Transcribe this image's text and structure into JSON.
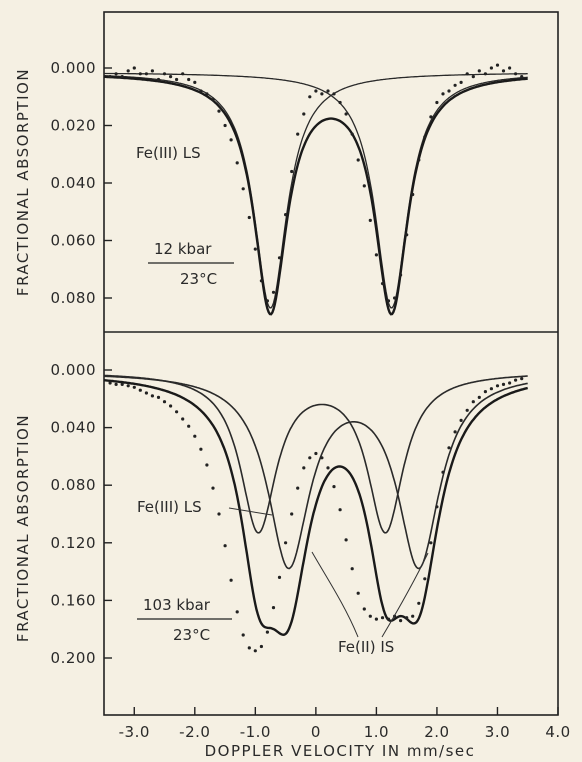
{
  "chart_data": [
    {
      "type": "scatter",
      "panel": "top",
      "ylabel": "FRACTIONAL ABSORPTION",
      "xlim": [
        -3.5,
        4.0
      ],
      "ylim": [
        0.0,
        0.086
      ],
      "y_inverted": true,
      "yticks": [
        "0.000",
        "0.020",
        "0.040",
        "0.060",
        "0.080"
      ],
      "annotations": {
        "species": "Fe(III) LS",
        "pressure": "12 kbar",
        "temperature": "23°C"
      },
      "series": [
        {
          "name": "Fe(III) LS",
          "kind": "doublet-fit",
          "baseline": 0.0015,
          "peaks": [
            {
              "center": -0.75,
              "depth": 0.082,
              "hwhm": 0.33
            },
            {
              "center": 1.25,
              "depth": 0.082,
              "hwhm": 0.33
            }
          ]
        },
        {
          "kind": "data-points",
          "x": [
            -3.4,
            -3.3,
            -3.2,
            -3.1,
            -3.0,
            -2.9,
            -2.8,
            -2.7,
            -2.6,
            -2.5,
            -2.4,
            -2.3,
            -2.2,
            -2.1,
            -2.0,
            -1.9,
            -1.8,
            -1.7,
            -1.6,
            -1.5,
            -1.4,
            -1.3,
            -1.2,
            -1.1,
            -1.0,
            -0.9,
            -0.8,
            -0.7,
            -0.6,
            -0.5,
            -0.4,
            -0.3,
            -0.2,
            -0.1,
            0.0,
            0.1,
            0.2,
            0.3,
            0.4,
            0.5,
            0.6,
            0.7,
            0.8,
            0.9,
            1.0,
            1.1,
            1.2,
            1.3,
            1.4,
            1.5,
            1.6,
            1.7,
            1.8,
            1.9,
            2.0,
            2.1,
            2.2,
            2.3,
            2.4,
            2.5,
            2.6,
            2.7,
            2.8,
            2.9,
            3.0,
            3.1,
            3.2,
            3.3,
            3.4
          ],
          "y": [
            0.003,
            0.002,
            0.003,
            0.001,
            0.0,
            0.002,
            0.002,
            0.001,
            0.004,
            0.002,
            0.003,
            0.004,
            0.002,
            0.004,
            0.005,
            0.008,
            0.009,
            0.011,
            0.015,
            0.02,
            0.025,
            0.033,
            0.042,
            0.052,
            0.063,
            0.074,
            0.081,
            0.078,
            0.066,
            0.051,
            0.036,
            0.023,
            0.016,
            0.01,
            0.008,
            0.009,
            0.008,
            0.009,
            0.012,
            0.016,
            0.023,
            0.032,
            0.041,
            0.053,
            0.065,
            0.075,
            0.081,
            0.08,
            0.072,
            0.058,
            0.044,
            0.032,
            0.024,
            0.017,
            0.012,
            0.009,
            0.008,
            0.006,
            0.005,
            0.002,
            0.003,
            0.001,
            0.002,
            0.0,
            -0.001,
            0.001,
            0.0,
            0.002,
            0.003
          ]
        }
      ]
    },
    {
      "type": "scatter",
      "panel": "bottom",
      "xlabel": "DOPPLER VELOCITY IN mm/sec",
      "ylabel": "FRACTIONAL ABSORPTION",
      "xlim": [
        -3.5,
        4.0
      ],
      "ylim": [
        0.0,
        0.206
      ],
      "y_inverted": true,
      "xticks": [
        "-3.0",
        "-2.0",
        "-1.0",
        "0",
        "1.0",
        "2.0",
        "3.0",
        "4.0"
      ],
      "yticks": [
        "0.000",
        "0.040",
        "0.080",
        "0.120",
        "0.160",
        "0.200"
      ],
      "annotations": {
        "species_ls": "Fe(III) LS",
        "species_is": "Fe(II) IS",
        "pressure": "103 kbar",
        "temperature": "23°C"
      },
      "series": [
        {
          "name": "Fe(III) LS",
          "kind": "doublet-fit",
          "baseline": 0.001,
          "peaks": [
            {
              "center": -0.95,
              "depth": 0.109,
              "hwhm": 0.36
            },
            {
              "center": 1.15,
              "depth": 0.109,
              "hwhm": 0.36
            }
          ]
        },
        {
          "name": "Fe(II) IS",
          "kind": "doublet-fit",
          "baseline": 0.001,
          "peaks": [
            {
              "center": -0.45,
              "depth": 0.132,
              "hwhm": 0.42
            },
            {
              "center": 1.7,
              "depth": 0.132,
              "hwhm": 0.42
            }
          ]
        },
        {
          "kind": "total-fit",
          "baseline": 0.001
        },
        {
          "kind": "data-points",
          "x": [
            -3.4,
            -3.3,
            -3.2,
            -3.1,
            -3.0,
            -2.9,
            -2.8,
            -2.7,
            -2.6,
            -2.5,
            -2.4,
            -2.3,
            -2.2,
            -2.1,
            -2.0,
            -1.9,
            -1.8,
            -1.7,
            -1.6,
            -1.5,
            -1.4,
            -1.3,
            -1.2,
            -1.1,
            -1.0,
            -0.9,
            -0.8,
            -0.7,
            -0.6,
            -0.5,
            -0.4,
            -0.3,
            -0.2,
            -0.1,
            0.0,
            0.1,
            0.2,
            0.3,
            0.4,
            0.5,
            0.6,
            0.7,
            0.8,
            0.9,
            1.0,
            1.1,
            1.2,
            1.3,
            1.4,
            1.5,
            1.6,
            1.7,
            1.8,
            1.9,
            2.0,
            2.1,
            2.2,
            2.3,
            2.4,
            2.5,
            2.6,
            2.7,
            2.8,
            2.9,
            3.0,
            3.1,
            3.2,
            3.3,
            3.4
          ],
          "y": [
            0.009,
            0.01,
            0.01,
            0.011,
            0.012,
            0.014,
            0.016,
            0.018,
            0.019,
            0.022,
            0.025,
            0.029,
            0.034,
            0.039,
            0.046,
            0.055,
            0.066,
            0.082,
            0.1,
            0.122,
            0.146,
            0.168,
            0.184,
            0.193,
            0.195,
            0.192,
            0.182,
            0.165,
            0.144,
            0.12,
            0.1,
            0.082,
            0.068,
            0.061,
            0.058,
            0.061,
            0.068,
            0.081,
            0.097,
            0.118,
            0.138,
            0.155,
            0.166,
            0.171,
            0.173,
            0.172,
            0.173,
            0.171,
            0.174,
            0.172,
            0.171,
            0.162,
            0.145,
            0.12,
            0.095,
            0.071,
            0.054,
            0.043,
            0.035,
            0.028,
            0.022,
            0.019,
            0.015,
            0.013,
            0.011,
            0.01,
            0.009,
            0.007,
            0.006
          ]
        }
      ]
    }
  ]
}
